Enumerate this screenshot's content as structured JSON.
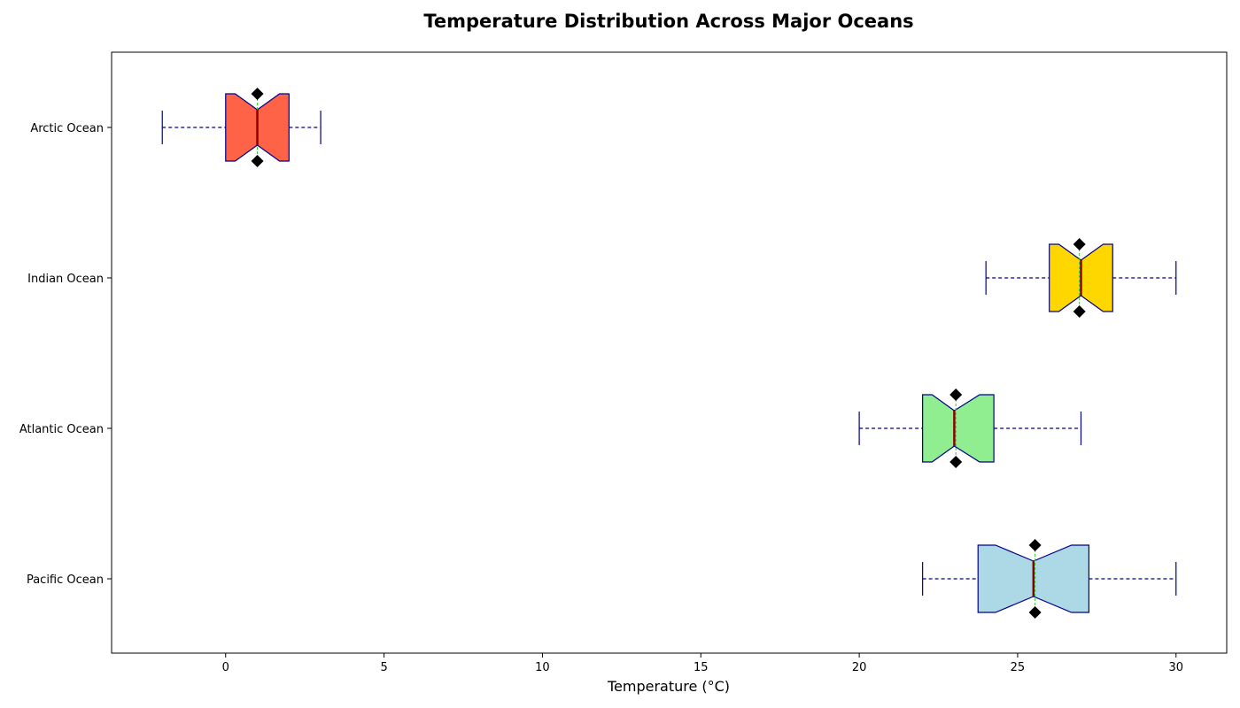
{
  "chart_data": {
    "type": "boxplot",
    "orientation": "horizontal",
    "title": "Temperature Distribution Across Major Oceans",
    "xlabel": "Temperature (°C)",
    "ylabel": "",
    "xlim": [
      -3.6,
      31.6
    ],
    "xticks": [
      0,
      5,
      10,
      15,
      20,
      25,
      30
    ],
    "grid": false,
    "notched": true,
    "categories": [
      "Pacific Ocean",
      "Atlantic Ocean",
      "Indian Ocean",
      "Arctic Ocean"
    ],
    "series": [
      {
        "category": "Pacific Ocean",
        "whisker_low": 22,
        "q1": 23.75,
        "median": 25.5,
        "q3": 27.25,
        "whisker_high": 30,
        "notch_low": 24.3,
        "notch_high": 26.7,
        "mean": 25.55,
        "color": "#add8e6"
      },
      {
        "category": "Atlantic Ocean",
        "whisker_low": 20,
        "q1": 22,
        "median": 23,
        "q3": 24.25,
        "whisker_high": 27,
        "notch_low": 22.3,
        "notch_high": 23.8,
        "mean": 23.05,
        "color": "#90ee90"
      },
      {
        "category": "Indian Ocean",
        "whisker_low": 24,
        "q1": 26,
        "median": 27,
        "q3": 28,
        "whisker_high": 30,
        "notch_low": 26.3,
        "notch_high": 27.7,
        "mean": 26.95,
        "color": "#ffd700"
      },
      {
        "category": "Arctic Ocean",
        "whisker_low": -2,
        "q1": 0,
        "median": 1,
        "q3": 2,
        "whisker_high": 3,
        "notch_low": 0.3,
        "notch_high": 1.7,
        "mean": 1,
        "color": "#ff6347"
      }
    ],
    "colors": {
      "box_edge": "#00008b",
      "whisker": "#00008b",
      "median_line": "#8b0000",
      "mean_line": "#32cd32",
      "marker": "#000000"
    }
  }
}
